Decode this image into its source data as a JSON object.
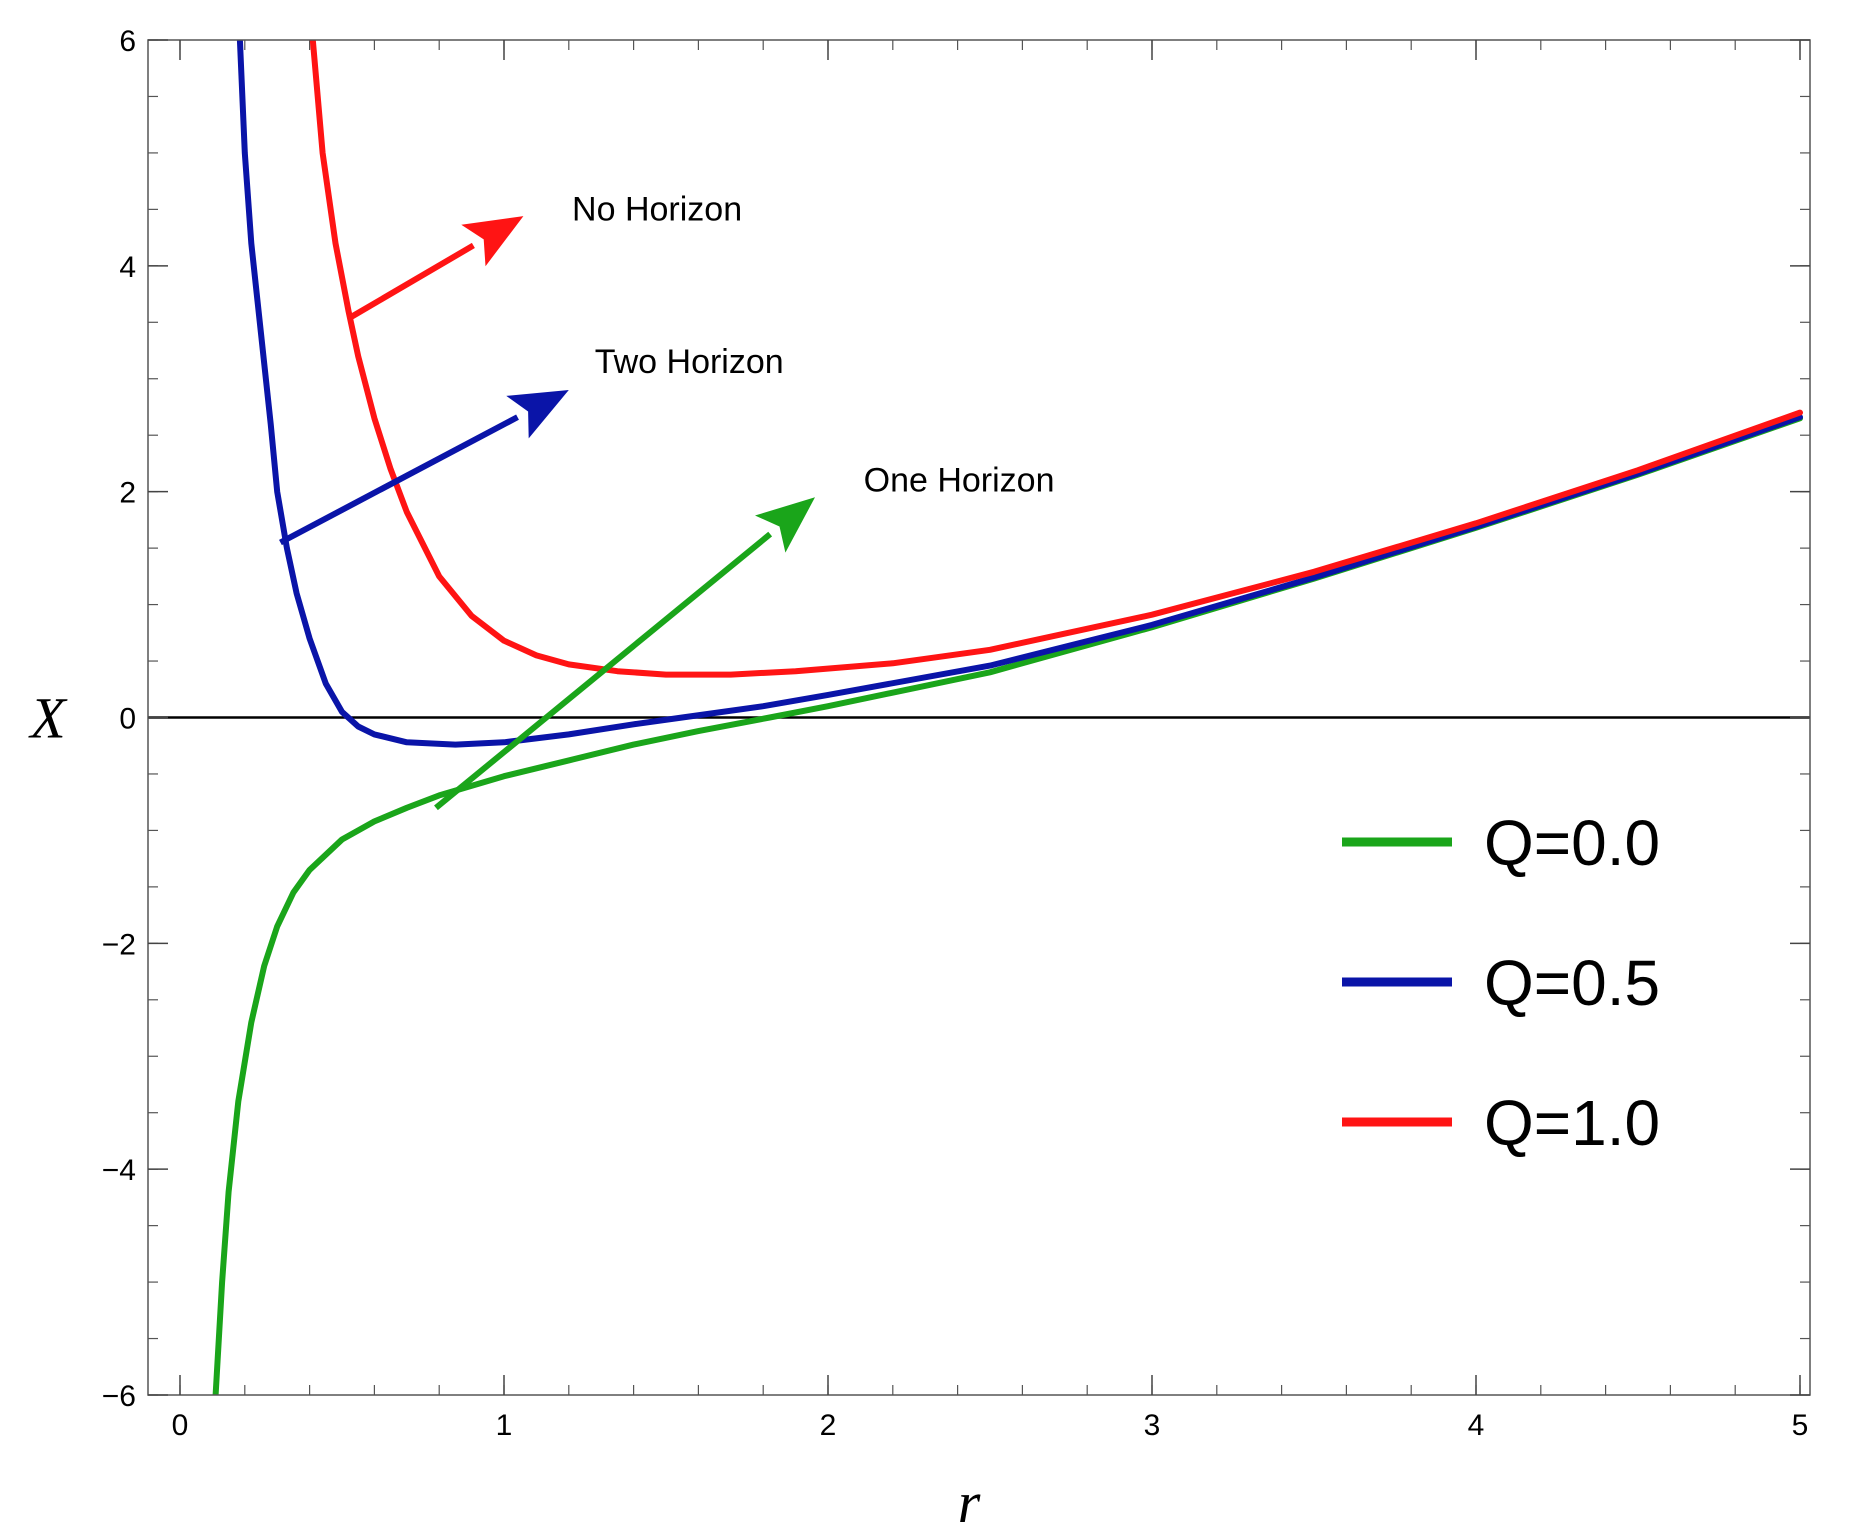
{
  "chart_data": {
    "type": "line",
    "xlabel": "r",
    "ylabel": "X",
    "xlim": [
      0,
      5
    ],
    "ylim": [
      -6,
      6
    ],
    "xticks": [
      0,
      1,
      2,
      3,
      4,
      5
    ],
    "yticks": [
      -6,
      -4,
      -2,
      0,
      2,
      4,
      6
    ],
    "x_minor_step": 0.2,
    "y_minor_step": 0.5,
    "zero_line": true,
    "legend_position": "lower-right",
    "series": [
      {
        "name": "Q=0.0",
        "color": "#1aa51a",
        "points": [
          [
            0.11,
            -6.0
          ],
          [
            0.13,
            -5.0
          ],
          [
            0.15,
            -4.2
          ],
          [
            0.18,
            -3.4
          ],
          [
            0.22,
            -2.7
          ],
          [
            0.26,
            -2.2
          ],
          [
            0.3,
            -1.85
          ],
          [
            0.35,
            -1.55
          ],
          [
            0.4,
            -1.35
          ],
          [
            0.5,
            -1.08
          ],
          [
            0.6,
            -0.92
          ],
          [
            0.7,
            -0.8
          ],
          [
            0.8,
            -0.69
          ],
          [
            1.0,
            -0.52
          ],
          [
            1.2,
            -0.38
          ],
          [
            1.4,
            -0.24
          ],
          [
            1.6,
            -0.12
          ],
          [
            1.82,
            0.0
          ],
          [
            2.0,
            0.1
          ],
          [
            2.5,
            0.4
          ],
          [
            3.0,
            0.8
          ],
          [
            3.5,
            1.23
          ],
          [
            4.0,
            1.68
          ],
          [
            4.5,
            2.15
          ],
          [
            5.0,
            2.65
          ]
        ]
      },
      {
        "name": "Q=0.5",
        "color": "#0a14a8",
        "points": [
          [
            0.185,
            6.0
          ],
          [
            0.2,
            5.0
          ],
          [
            0.22,
            4.2
          ],
          [
            0.25,
            3.4
          ],
          [
            0.28,
            2.6
          ],
          [
            0.3,
            2.0
          ],
          [
            0.33,
            1.5
          ],
          [
            0.36,
            1.1
          ],
          [
            0.4,
            0.7
          ],
          [
            0.45,
            0.3
          ],
          [
            0.5,
            0.05
          ],
          [
            0.55,
            -0.08
          ],
          [
            0.6,
            -0.15
          ],
          [
            0.7,
            -0.22
          ],
          [
            0.85,
            -0.24
          ],
          [
            1.0,
            -0.22
          ],
          [
            1.2,
            -0.15
          ],
          [
            1.4,
            -0.06
          ],
          [
            1.55,
            0.0
          ],
          [
            1.8,
            0.1
          ],
          [
            2.0,
            0.2
          ],
          [
            2.5,
            0.46
          ],
          [
            3.0,
            0.82
          ],
          [
            3.5,
            1.24
          ],
          [
            4.0,
            1.69
          ],
          [
            4.5,
            2.16
          ],
          [
            5.0,
            2.66
          ]
        ]
      },
      {
        "name": "Q=1.0",
        "color": "#ff1414",
        "points": [
          [
            0.41,
            6.0
          ],
          [
            0.44,
            5.0
          ],
          [
            0.48,
            4.2
          ],
          [
            0.52,
            3.6
          ],
          [
            0.55,
            3.2
          ],
          [
            0.6,
            2.65
          ],
          [
            0.65,
            2.2
          ],
          [
            0.7,
            1.82
          ],
          [
            0.8,
            1.25
          ],
          [
            0.9,
            0.9
          ],
          [
            1.0,
            0.68
          ],
          [
            1.1,
            0.55
          ],
          [
            1.2,
            0.47
          ],
          [
            1.35,
            0.41
          ],
          [
            1.5,
            0.38
          ],
          [
            1.7,
            0.38
          ],
          [
            1.9,
            0.41
          ],
          [
            2.2,
            0.48
          ],
          [
            2.5,
            0.6
          ],
          [
            3.0,
            0.91
          ],
          [
            3.5,
            1.29
          ],
          [
            4.0,
            1.72
          ],
          [
            4.5,
            2.19
          ],
          [
            5.0,
            2.7
          ]
        ]
      }
    ],
    "annotations": [
      {
        "text": "No Horizon",
        "color": "#ff1414",
        "arrow_from": [
          0.53,
          3.55
        ],
        "arrow_to": [
          1.06,
          4.44
        ],
        "text_at": [
          1.21,
          4.4
        ]
      },
      {
        "text": "Two Horizon",
        "color": "#0a14a8",
        "arrow_from": [
          0.31,
          1.55
        ],
        "arrow_to": [
          1.2,
          2.9
        ],
        "text_at": [
          1.28,
          3.05
        ]
      },
      {
        "text": "One Horizon",
        "color": "#1aa51a",
        "arrow_from": [
          0.79,
          -0.8
        ],
        "arrow_to": [
          1.96,
          1.95
        ],
        "text_at": [
          2.11,
          2.0
        ]
      }
    ]
  }
}
